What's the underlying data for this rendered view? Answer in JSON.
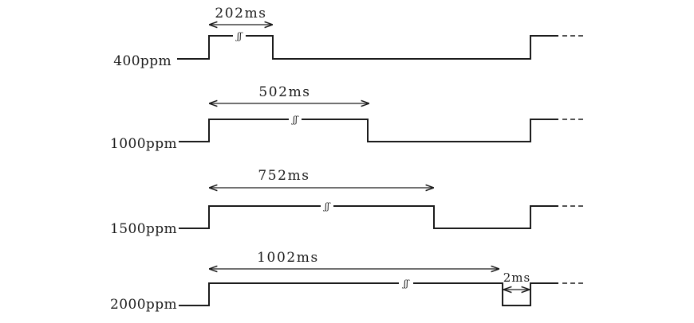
{
  "waveforms": [
    {
      "label": "400ppm",
      "pulse_duration": "202ms",
      "break_mark": "ʃʃ"
    },
    {
      "label": "1000ppm",
      "pulse_duration": "502ms",
      "break_mark": "ʃʃ"
    },
    {
      "label": "1500ppm",
      "pulse_duration": "752ms",
      "break_mark": "ʃʃ"
    },
    {
      "label": "2000ppm",
      "pulse_duration": "1002ms",
      "break_mark": "ʃʃ",
      "low_duration": "2ms"
    }
  ]
}
